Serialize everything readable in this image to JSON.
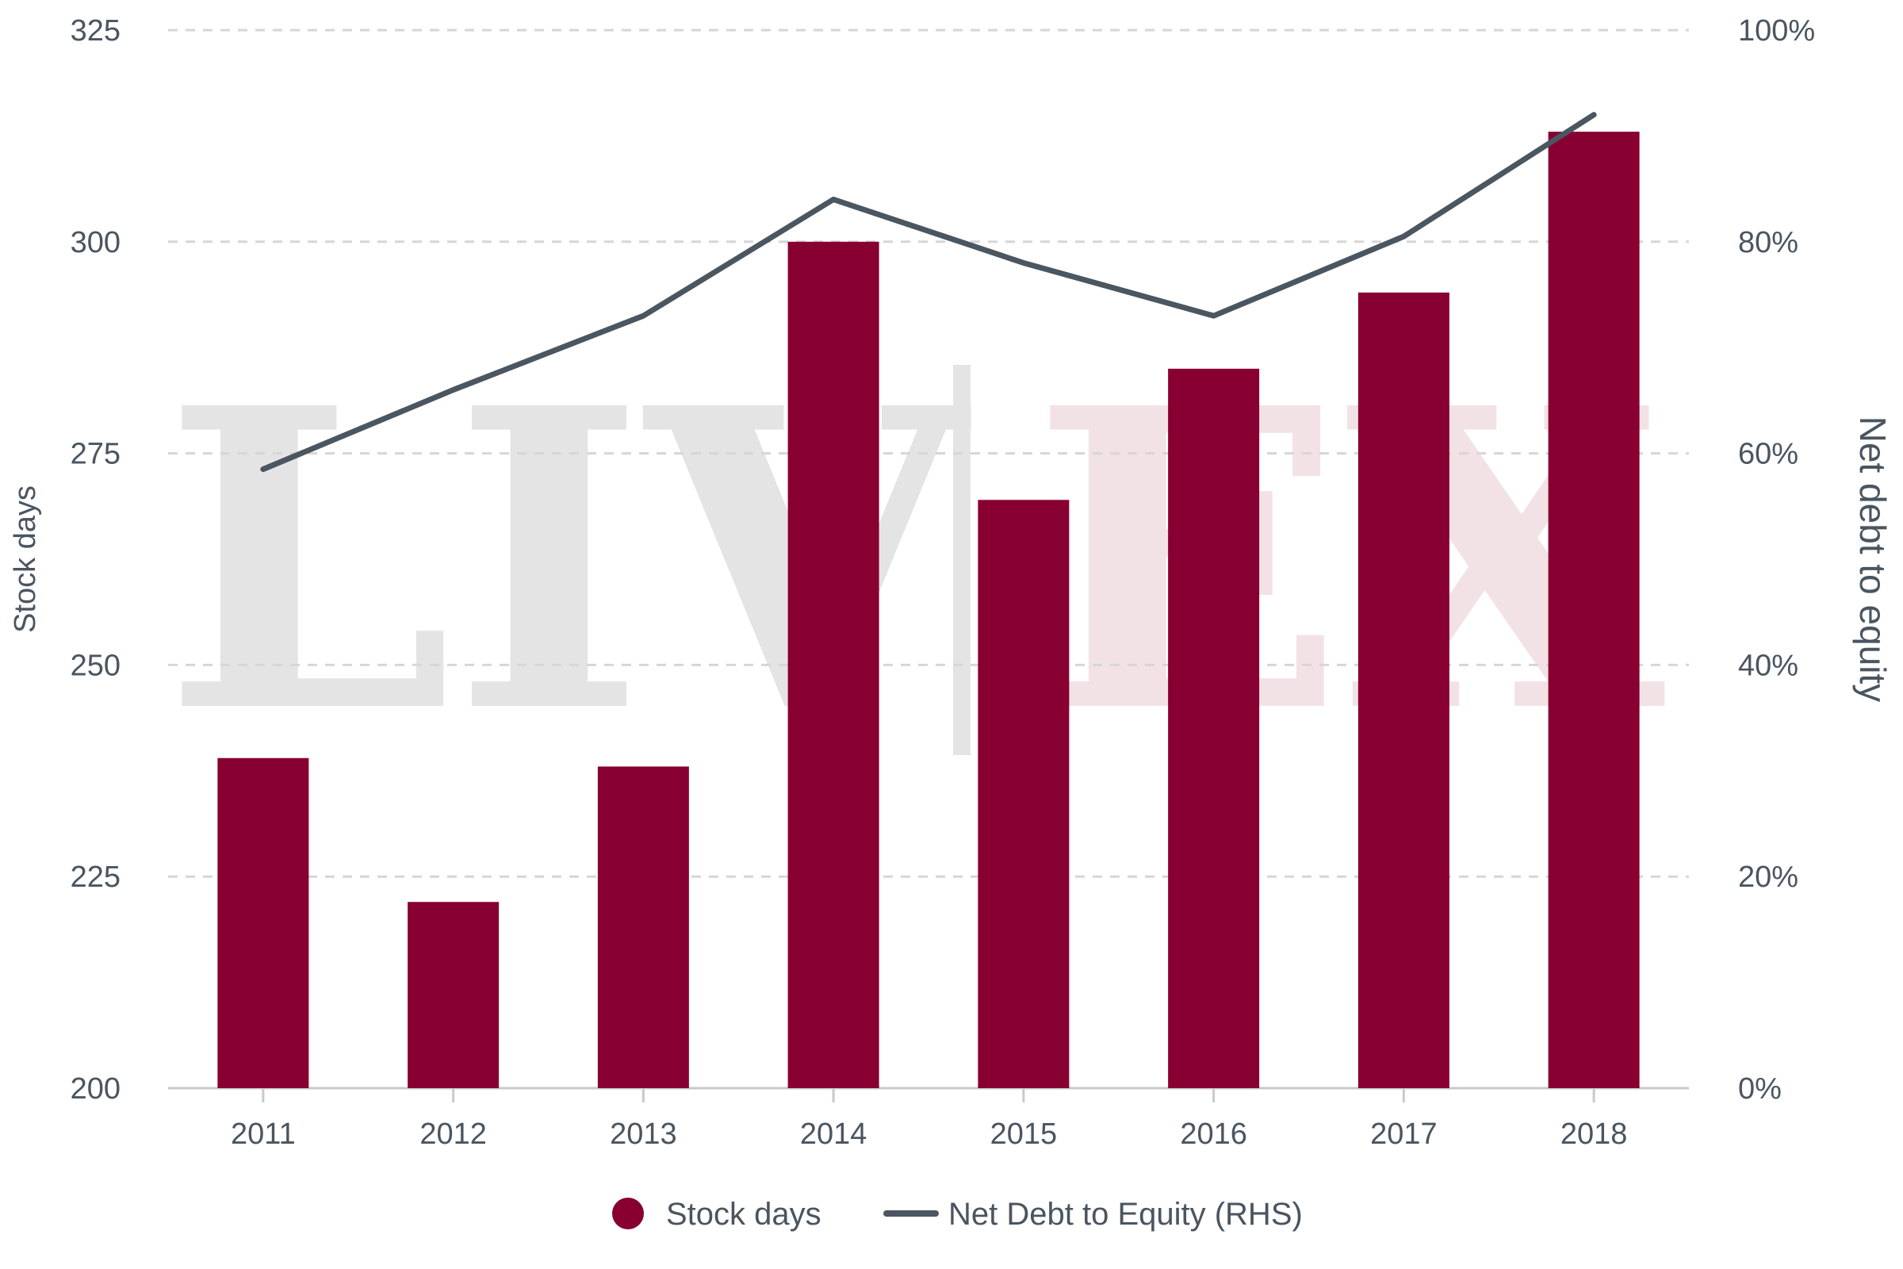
{
  "chart_data": {
    "type": "bar",
    "title": "",
    "xlabel": "",
    "ylabel": "Stock days",
    "y2label": "Net debt to equity",
    "categories": [
      "2011",
      "2012",
      "2013",
      "2014",
      "2015",
      "2016",
      "2017",
      "2018"
    ],
    "ylim": [
      200,
      325
    ],
    "yticks": [
      "200",
      "225",
      "250",
      "275",
      "300",
      "325"
    ],
    "y2lim": [
      0,
      100
    ],
    "y2ticks": [
      "0%",
      "20%",
      "40%",
      "60%",
      "80%",
      "100%"
    ],
    "grid": true,
    "legend_position": "bottom",
    "series": [
      {
        "name": "Stock days",
        "type": "bar",
        "axis": "left",
        "color": "#870031",
        "values": [
          239,
          222,
          238,
          300,
          269.5,
          285,
          294,
          313
        ]
      },
      {
        "name": "Net Debt to Equity (RHS)",
        "type": "line",
        "axis": "right",
        "color": "#4a5660",
        "values": [
          58.5,
          66,
          73,
          84,
          78,
          73,
          80.5,
          92
        ]
      }
    ]
  },
  "watermark": {
    "left_text": "LIV",
    "right_text": "EX",
    "left_color": "#e4e4e4",
    "right_color": "#f2e2e6"
  },
  "colors": {
    "grid": "#d6d6d6",
    "axis_line": "#c9c9c9",
    "text": "#4a5560"
  }
}
